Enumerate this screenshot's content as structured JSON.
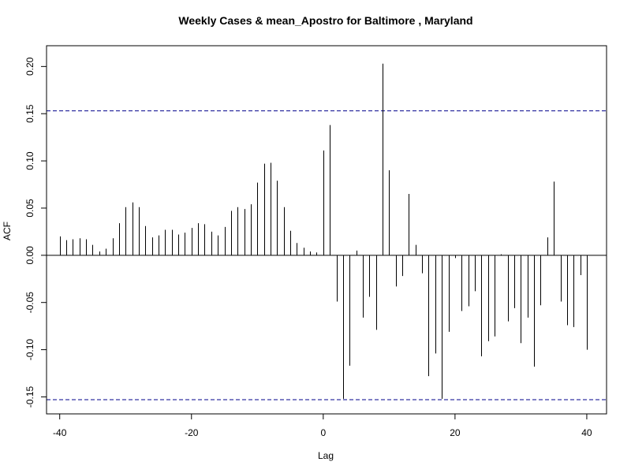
{
  "chart_data": {
    "type": "bar",
    "title": "Weekly Cases & mean_Apostro for Baltimore , Maryland",
    "xlabel": "Lag",
    "ylabel": "ACF",
    "xlim": [
      -42,
      43
    ],
    "ylim": [
      -0.168,
      0.222
    ],
    "x_ticks": [
      -40,
      -20,
      0,
      20,
      40
    ],
    "x_tick_labels": [
      "-40",
      "-20",
      "0",
      "20",
      "40"
    ],
    "y_ticks": [
      -0.15,
      -0.1,
      -0.05,
      0.0,
      0.05,
      0.1,
      0.15,
      0.2
    ],
    "y_tick_labels": [
      "-0.15",
      "-0.10",
      "-0.05",
      "0.00",
      "0.05",
      "0.10",
      "0.15",
      "0.20"
    ],
    "confidence_bound": 0.153,
    "confidence_color": "#00008b",
    "bar_color": "#000000",
    "lags": [
      -40,
      -39,
      -38,
      -37,
      -36,
      -35,
      -34,
      -33,
      -32,
      -31,
      -30,
      -29,
      -28,
      -27,
      -26,
      -25,
      -24,
      -23,
      -22,
      -21,
      -20,
      -19,
      -18,
      -17,
      -16,
      -15,
      -14,
      -13,
      -12,
      -11,
      -10,
      -9,
      -8,
      -7,
      -6,
      -5,
      -4,
      -3,
      -2,
      -1,
      0,
      1,
      2,
      3,
      4,
      5,
      6,
      7,
      8,
      9,
      10,
      11,
      12,
      13,
      14,
      15,
      16,
      17,
      18,
      19,
      20,
      21,
      22,
      23,
      24,
      25,
      26,
      27,
      28,
      29,
      30,
      31,
      32,
      33,
      34,
      35,
      36,
      37,
      38,
      39,
      40
    ],
    "acf": [
      0.02,
      0.016,
      0.017,
      0.018,
      0.017,
      0.011,
      0.004,
      0.007,
      0.018,
      0.034,
      0.051,
      0.056,
      0.051,
      0.031,
      0.019,
      0.021,
      0.027,
      0.027,
      0.022,
      0.024,
      0.029,
      0.034,
      0.033,
      0.025,
      0.021,
      0.03,
      0.047,
      0.051,
      0.049,
      0.054,
      0.077,
      0.097,
      0.098,
      0.079,
      0.051,
      0.026,
      0.013,
      0.008,
      0.004,
      0.003,
      0.111,
      0.138,
      -0.049,
      -0.152,
      -0.117,
      0.005,
      -0.066,
      -0.044,
      -0.079,
      0.203,
      0.09,
      -0.033,
      -0.022,
      0.065,
      0.011,
      -0.019,
      -0.128,
      -0.104,
      -0.152,
      -0.081,
      -0.003,
      -0.059,
      -0.054,
      -0.038,
      -0.107,
      -0.091,
      -0.086,
      0.001,
      -0.07,
      -0.056,
      -0.093,
      -0.066,
      -0.118,
      -0.053,
      0.019,
      0.078,
      -0.049,
      -0.074,
      -0.076,
      -0.021,
      -0.1
    ]
  }
}
